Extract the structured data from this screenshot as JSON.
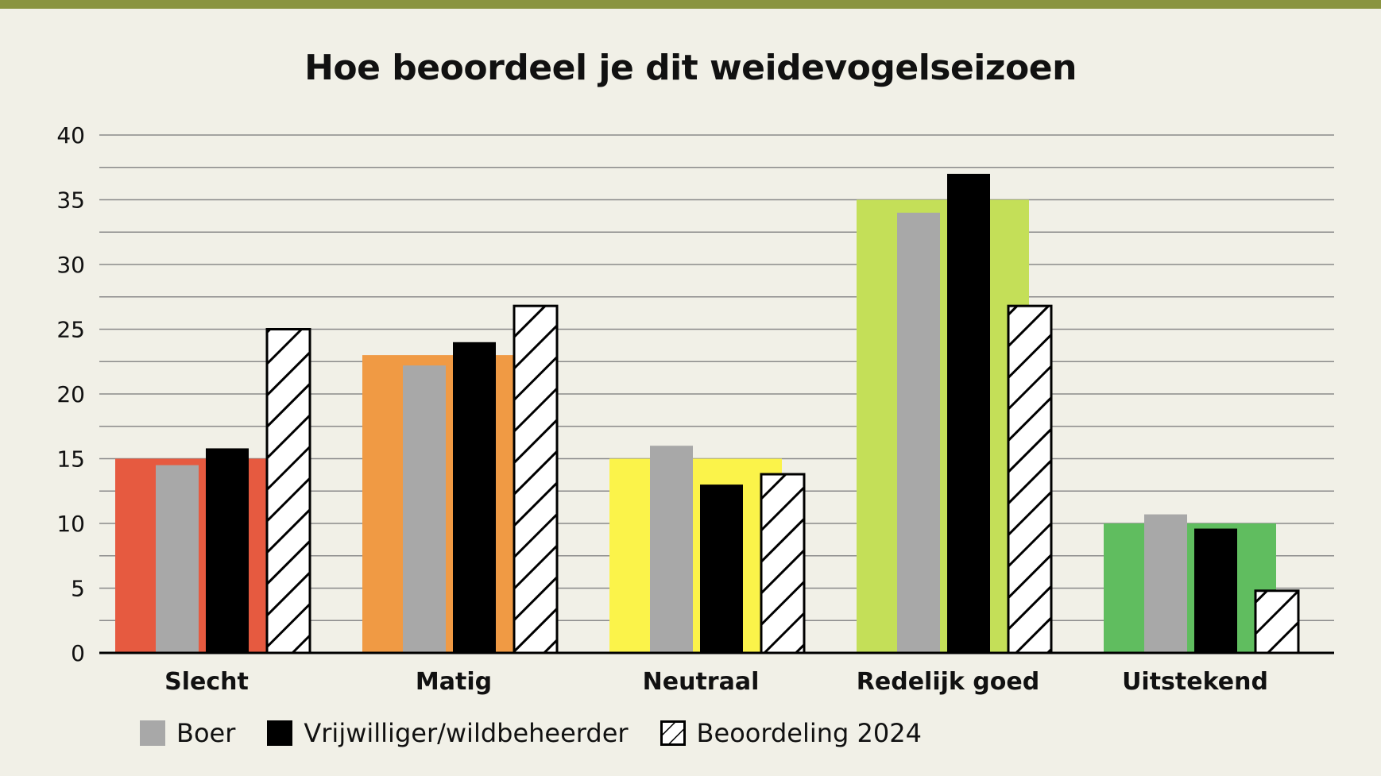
{
  "colors": {
    "top_bar": "#8a9440",
    "background": "#f1f0e7",
    "boer": "#a8a8a8",
    "vrijwilliger": "#000000",
    "category_fills": [
      "#e65a40",
      "#f09a44",
      "#fbf34a",
      "#c4df58",
      "#60bd5f"
    ]
  },
  "chart_data": {
    "type": "bar",
    "title": "Hoe beoordeel je dit weidevogelseizoen",
    "categories": [
      "Slecht",
      "Matig",
      "Neutraal",
      "Redelijk goed",
      "Uitstekend"
    ],
    "ylim": [
      0,
      40
    ],
    "yticks": [
      "0",
      "5",
      "10",
      "15",
      "20",
      "25",
      "30",
      "35",
      "40"
    ],
    "grid": true,
    "legend_position": "bottom-left",
    "series": [
      {
        "name": "",
        "values": [
          15,
          23,
          15,
          35,
          10
        ]
      },
      {
        "name": "Boer",
        "values": [
          14.5,
          22.2,
          16,
          34,
          10.7
        ]
      },
      {
        "name": "Vrijwilliger/wildbeheerder",
        "values": [
          15.8,
          24,
          13,
          37,
          9.6
        ]
      },
      {
        "name": "Beoordeling 2024",
        "values": [
          25,
          26.8,
          13.8,
          26.8,
          4.8
        ]
      }
    ]
  },
  "legend": [
    {
      "label": "Boer",
      "icon": "gray-square"
    },
    {
      "label": "Vrijwilliger/wildbeheerder",
      "icon": "black-square"
    },
    {
      "label": "Beoordeling 2024",
      "icon": "hatched-square"
    }
  ]
}
